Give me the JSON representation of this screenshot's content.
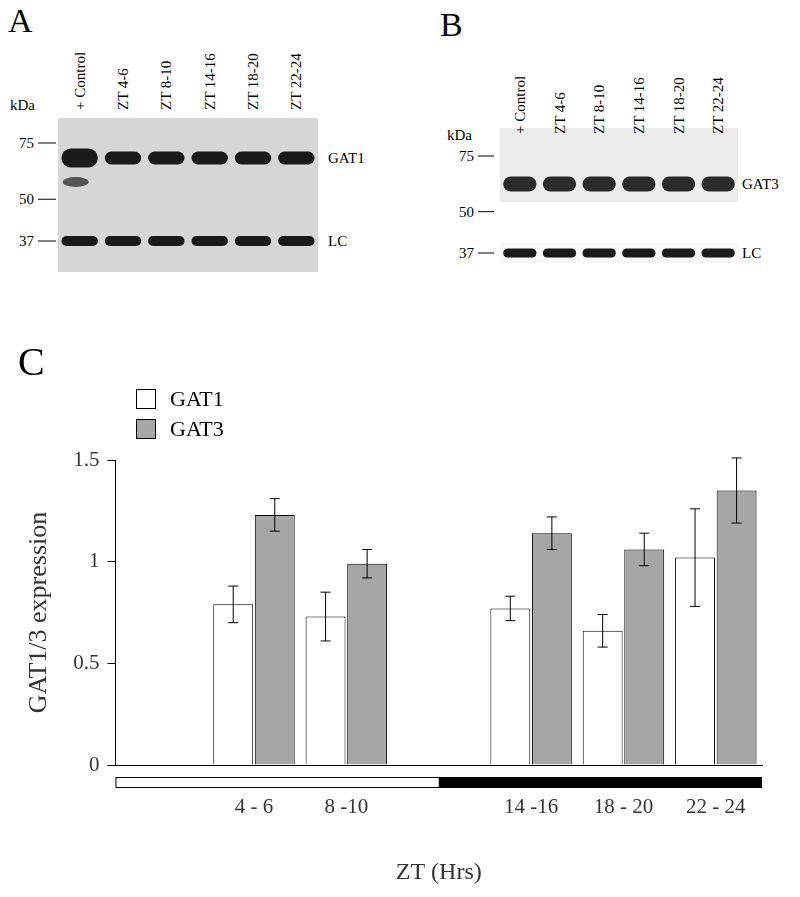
{
  "chart_data": {
    "type": "bar",
    "title": "C",
    "x_label": "ZT (Hrs)",
    "y_label": "GAT1/3 expression",
    "categories": [
      null,
      "4 - 6",
      "8 -10",
      null,
      "14 -16",
      "18 - 20",
      "22 - 24"
    ],
    "series": [
      {
        "name": "GAT1",
        "color": "#ffffff",
        "values": [
          null,
          0.79,
          0.73,
          null,
          0.77,
          0.66,
          1.02
        ],
        "errors": [
          null,
          0.09,
          0.12,
          null,
          0.06,
          0.08,
          0.24
        ]
      },
      {
        "name": "GAT3",
        "color": "#a6a6a6",
        "values": [
          null,
          1.23,
          0.99,
          null,
          1.14,
          1.06,
          1.35
        ],
        "errors": [
          null,
          0.08,
          0.07,
          null,
          0.08,
          0.08,
          0.16
        ]
      }
    ],
    "ylim": [
      0,
      1.5
    ],
    "yticks": [
      0,
      0.5,
      1,
      1.5
    ],
    "grid": false,
    "legend": "top-left"
  },
  "blots": [
    {
      "label": "A",
      "unit": "kDa",
      "markers": [
        75,
        50,
        37
      ],
      "lanes": [
        "+ Control",
        "ZT 4-6",
        "ZT 8-10",
        "ZT 14-16",
        "ZT 18-20",
        "ZT 22-24"
      ],
      "bands": [
        "GAT1",
        "LC"
      ]
    },
    {
      "label": "B",
      "unit": "kDa",
      "markers": [
        75,
        50,
        37
      ],
      "lanes": [
        "+ Control",
        "ZT 4-6",
        "ZT 8-10",
        "ZT 14-16",
        "ZT 18-20",
        "ZT 22-24"
      ],
      "bands": [
        "GAT3",
        "LC"
      ]
    }
  ]
}
